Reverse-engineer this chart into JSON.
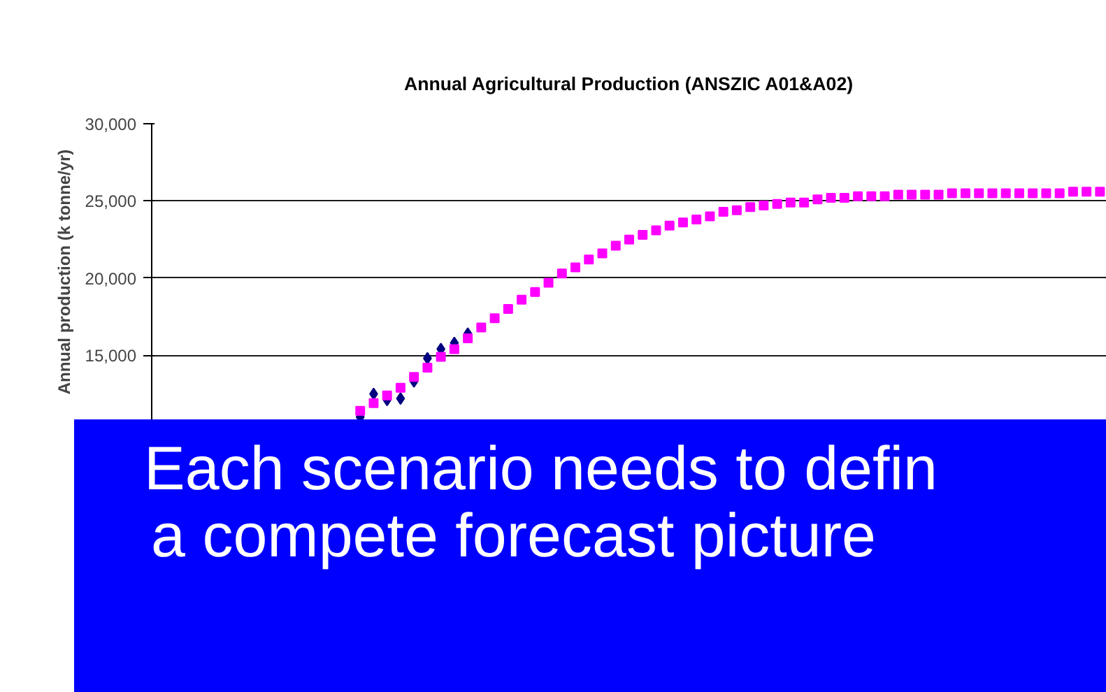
{
  "chart_data": {
    "type": "scatter",
    "title": "Annual Agricultural Production (ANSZIC A01&A02)",
    "ylabel": "Annual production (k tonne/yr)",
    "categories": [
      null,
      null,
      null,
      null,
      null,
      null,
      null,
      null,
      null,
      null,
      null,
      null,
      null,
      null,
      null,
      null,
      null,
      null,
      null,
      null,
      null,
      null,
      null,
      null,
      null,
      null,
      null,
      null,
      null,
      null,
      null,
      null,
      null,
      null,
      null,
      null,
      null,
      null,
      null,
      null,
      null,
      null,
      null,
      null,
      null,
      null,
      null,
      null,
      null,
      null,
      null,
      null,
      null,
      null,
      null,
      null,
      null,
      null,
      null,
      null,
      null,
      null,
      null,
      null,
      null,
      null,
      null,
      null,
      null,
      null,
      null
    ],
    "series": [
      {
        "color": "#000080",
        "marker": "diamond",
        "values": [
          null,
          null,
          null,
          null,
          null,
          null,
          null,
          null,
          null,
          null,
          null,
          null,
          null,
          null,
          null,
          11000,
          12500,
          12100,
          12200,
          13300,
          14800,
          15400,
          15800,
          16400,
          null,
          null,
          null,
          null,
          null,
          null,
          null,
          null,
          null,
          null,
          null,
          null,
          null,
          null,
          null,
          null,
          null,
          null,
          null,
          null,
          null,
          null,
          null,
          null,
          null,
          null,
          null,
          null,
          null,
          null,
          null,
          null,
          null,
          null,
          null,
          null,
          null,
          null,
          null,
          null,
          null,
          null,
          null,
          null,
          null,
          null,
          null
        ]
      },
      {
        "color": "#ff00ff",
        "marker": "square",
        "values": [
          null,
          null,
          null,
          null,
          null,
          null,
          null,
          null,
          null,
          null,
          null,
          null,
          null,
          null,
          null,
          11400,
          11900,
          12400,
          12900,
          13600,
          14200,
          14900,
          15400,
          16100,
          16800,
          17400,
          18000,
          18600,
          19100,
          19700,
          20300,
          20700,
          21200,
          21600,
          22100,
          22500,
          22800,
          23100,
          23400,
          23600,
          23800,
          24000,
          24300,
          24400,
          24600,
          24700,
          24800,
          24900,
          24900,
          25100,
          25200,
          25200,
          25300,
          25300,
          25300,
          25400,
          25400,
          25400,
          25400,
          25500,
          25500,
          25500,
          25500,
          25500,
          25500,
          25500,
          25500,
          25500,
          25600,
          25600,
          25600
        ]
      }
    ],
    "ylim": [
      10800,
      30000
    ],
    "yticks": [
      {
        "value": 15000,
        "label": "15,000"
      },
      {
        "value": 20000,
        "label": "20,000"
      },
      {
        "value": 25000,
        "label": "25,000"
      },
      {
        "value": 30000,
        "label": "30,000"
      }
    ],
    "grid": "y",
    "tick_labels": "y",
    "annotations": [
      "Each scenario needs to defin",
      "a compete forecast picture"
    ]
  }
}
